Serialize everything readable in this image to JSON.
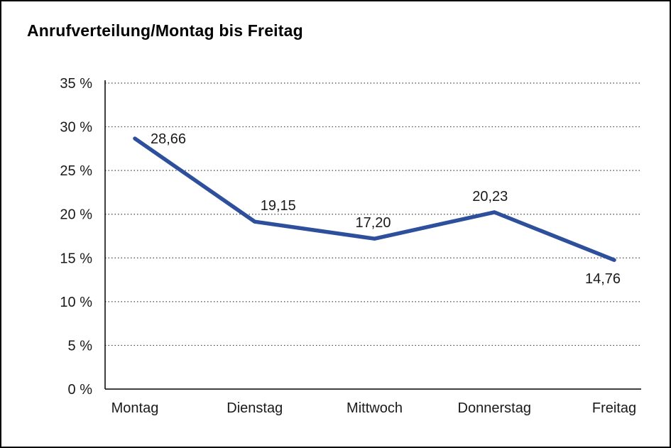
{
  "chart_data": {
    "type": "line",
    "title": "Anrufverteilung/Montag bis Freitag",
    "categories": [
      "Montag",
      "Dienstag",
      "Mittwoch",
      "Donnerstag",
      "Freitag"
    ],
    "values": [
      28.66,
      19.15,
      17.2,
      20.23,
      14.76
    ],
    "point_labels": [
      "28,66",
      "19,15",
      "17,20",
      "20,23",
      "14,76"
    ],
    "y_tick_labels": [
      "0 %",
      "5 %",
      "10 %",
      "15 %",
      "20 %",
      "25 %",
      "30 %",
      "35 %"
    ],
    "y_tick_values": [
      0,
      5,
      10,
      15,
      20,
      25,
      30,
      35
    ],
    "ylim": [
      0,
      35
    ],
    "xlabel": "",
    "ylabel": "",
    "grid": "horizontal-dotted",
    "legend": "none",
    "line_color": "#2E4F9C",
    "axis_color": "#000000",
    "label_color": "#1a1a1a"
  }
}
